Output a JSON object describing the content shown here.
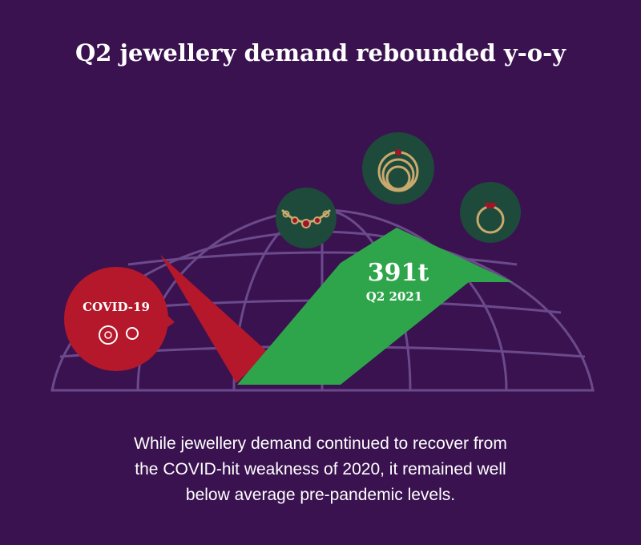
{
  "title": "Q2 jewellery demand rebounded y-o-y",
  "covid_label": "COVID-19",
  "highlight": {
    "value": "391t",
    "period": "Q2 2021"
  },
  "body": [
    "While jewellery demand continued to recover from",
    "the COVID-hit weakness of 2020, it remained well",
    "below average pre-pandemic levels."
  ]
}
